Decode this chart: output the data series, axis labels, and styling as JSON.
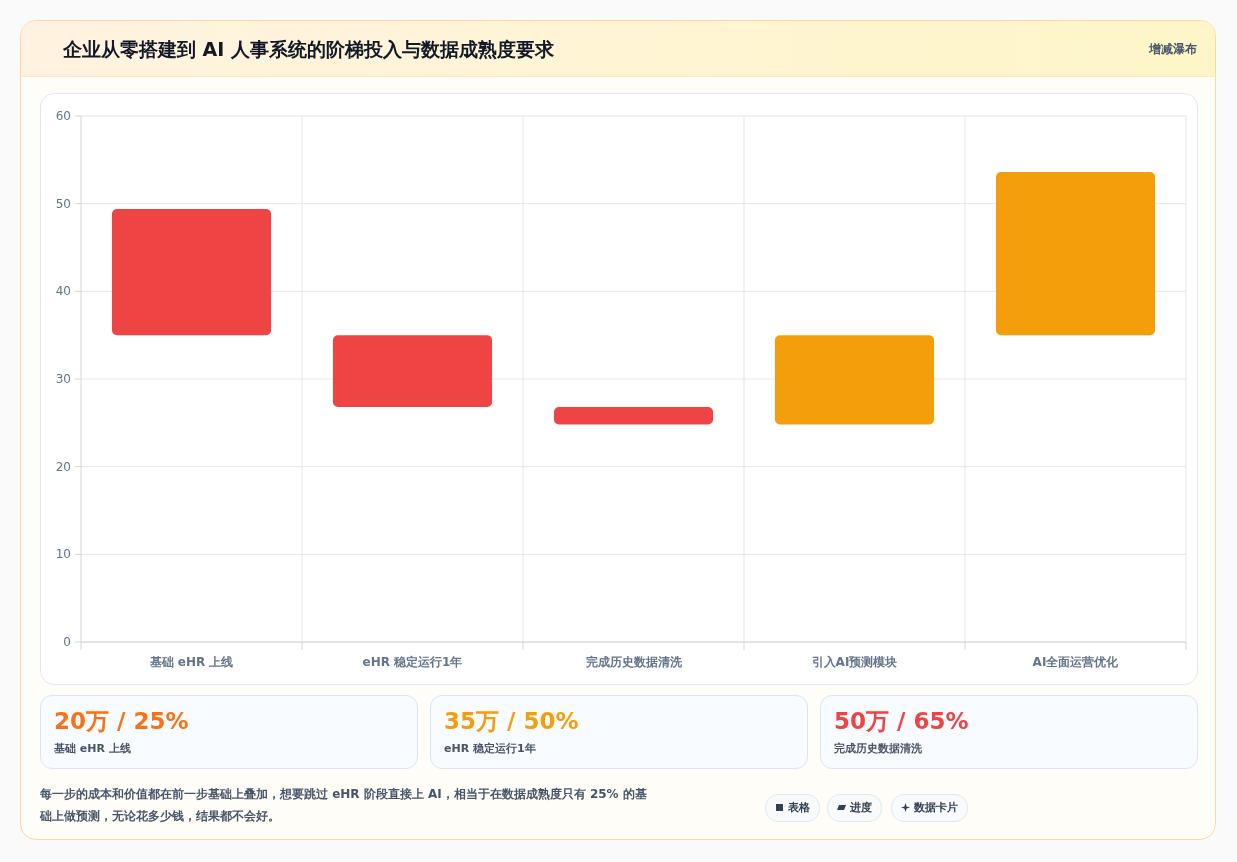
{
  "chart_data": [
    {
      "type": "bar",
      "title": "企业从零搭建到 AI 人事系统的阶梯投入与数据成熟度要求",
      "categories": [
        "基础 eHR 上线",
        "eHR 稳定运行1年",
        "完成历史数据清洗",
        "引入AI预测模块",
        "AI全面运营优化"
      ],
      "base": [
        35,
        26.8,
        24.8,
        24.8,
        35
      ],
      "values": [
        14.4,
        8.2,
        2,
        10.2,
        18.6
      ],
      "colors": [
        "#ef4444",
        "#ef4444",
        "#ef4444",
        "#f59e0b",
        "#f59e0b"
      ],
      "ylim": [
        0,
        60
      ],
      "yticks": [
        0,
        10,
        20,
        30,
        40,
        50,
        60
      ],
      "grid": true,
      "annotations": [
        "增减瀑布",
        "每一步的成本和价值都在前一步基础上叠加，想要跳过 eHR 阶段直接上 AI，相当于在数据成熟度只有 25% 的基础上做预测，无论花多少钱，结果都不会好。",
        "表格",
        "进度",
        "数据卡片"
      ]
    },
    {
      "type": "other",
      "annotations": [
        "20万 / 25%",
        "基础 eHR 上线",
        "35万 / 50%",
        "eHR 稳定运行1年",
        "50万 / 65%",
        "完成历史数据清洗"
      ],
      "colors": [
        "#f97316",
        "#f59e0b",
        "#ef4444"
      ]
    }
  ]
}
